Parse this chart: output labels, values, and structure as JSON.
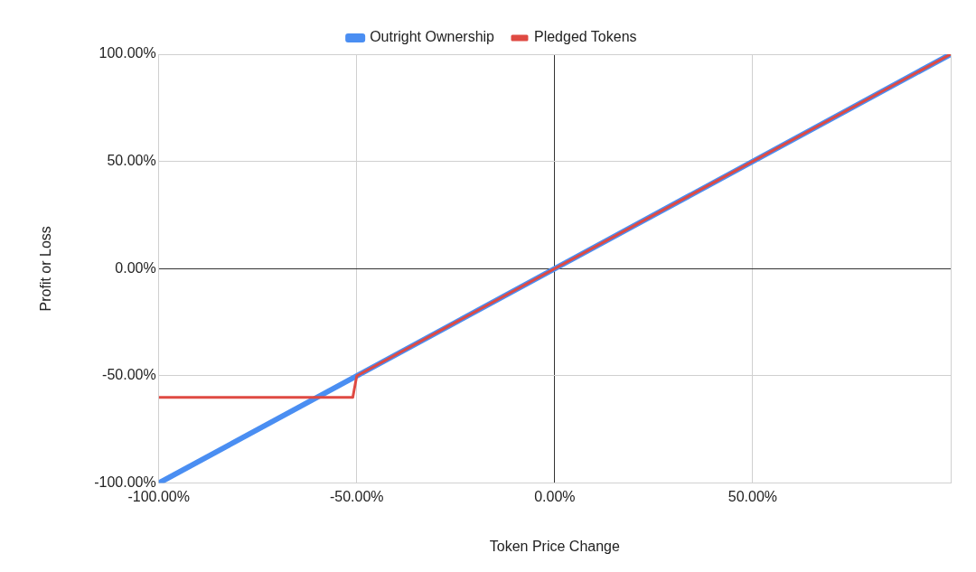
{
  "chart_data": {
    "type": "line",
    "xlabel": "Token Price Change",
    "ylabel": "Profit or Loss",
    "legend": "top",
    "grid": true,
    "marker": "none",
    "line_style": "solid",
    "xlim": [
      -100,
      100
    ],
    "ylim": [
      -100,
      100
    ],
    "xticks": [
      {
        "value": -100,
        "label": "-100.00%"
      },
      {
        "value": -50,
        "label": "-50.00%"
      },
      {
        "value": 0,
        "label": "0.00%"
      },
      {
        "value": 50,
        "label": "50.00%"
      },
      {
        "value": 100,
        "label": null
      }
    ],
    "yticks": [
      {
        "value": -100,
        "label": "-100.00%"
      },
      {
        "value": -50,
        "label": "-50.00%"
      },
      {
        "value": 0,
        "label": "0.00%"
      },
      {
        "value": 50,
        "label": "50.00%"
      },
      {
        "value": 100,
        "label": "100.00%"
      }
    ],
    "series": [
      {
        "name": "Outright Ownership",
        "color": "#4a8ef2",
        "x": [
          -100,
          100
        ],
        "values": [
          -100,
          100
        ]
      },
      {
        "name": "Pledged Tokens",
        "color": "#df4a43",
        "x": [
          -100,
          -51,
          -50,
          100
        ],
        "values": [
          -60,
          -60,
          -50,
          100
        ]
      }
    ]
  }
}
